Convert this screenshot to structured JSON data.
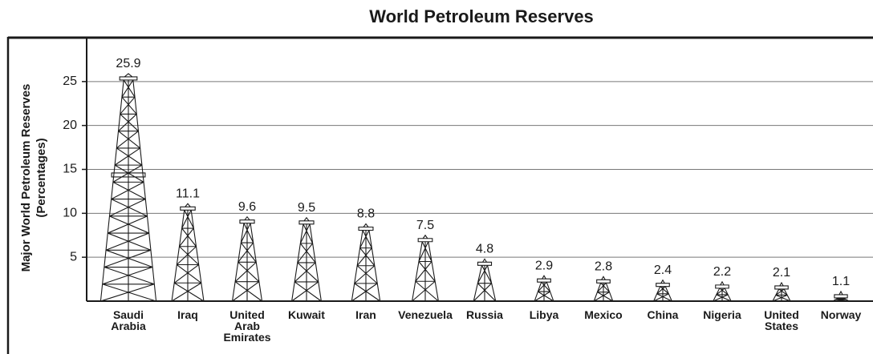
{
  "chart_data": {
    "type": "pictograph",
    "title": "World Petroleum Reserves",
    "y_label": [
      "Major World Petroleum Reserves",
      "(Percentages)"
    ],
    "categories": [
      "Saudi Arabia",
      "Iraq",
      "United Arab Emirates",
      "Kuwait",
      "Iran",
      "Venezuela",
      "Russia",
      "Libya",
      "Mexico",
      "China",
      "Nigeria",
      "United States",
      "Norway"
    ],
    "values": [
      25.9,
      11.1,
      9.6,
      9.5,
      8.8,
      7.5,
      4.8,
      2.9,
      2.8,
      2.4,
      2.2,
      2.1,
      1.1
    ],
    "color": "#1a1a1a",
    "ylim": [
      0,
      30
    ],
    "yticks": [
      5,
      10,
      15,
      20,
      25
    ],
    "grid": true
  }
}
